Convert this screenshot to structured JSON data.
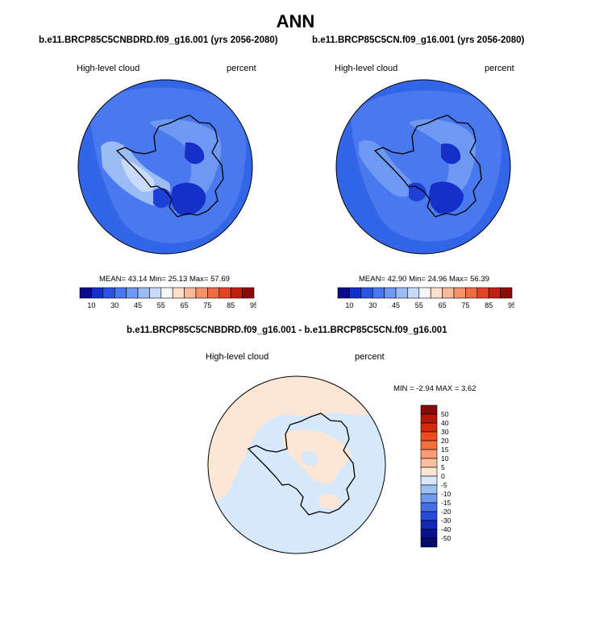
{
  "page_title": "ANN",
  "panels": [
    {
      "case": "b.e11.BRCP85C5CNBDRD.f09_g16.001 (yrs 2056-2080)",
      "variable": "High-level cloud",
      "units": "percent",
      "stats": {
        "mean_label": "MEAN=",
        "mean": "43.14",
        "min_label": "Min=",
        "min": "25.13",
        "max_label": "Max=",
        "max": "57.69"
      }
    },
    {
      "case": "b.e11.BRCP85C5CN.f09_g16.001 (yrs 2056-2080)",
      "variable": "High-level cloud",
      "units": "percent",
      "stats": {
        "mean_label": "MEAN=",
        "mean": "42.90",
        "min_label": "Min=",
        "min": "24.96",
        "max_label": "Max=",
        "max": "56.39"
      }
    }
  ],
  "colorbar_horizontal": {
    "labels": [
      "10",
      "30",
      "45",
      "55",
      "65",
      "75",
      "85",
      "95"
    ],
    "colors": [
      "#0a0a8c",
      "#1530c8",
      "#2a55e0",
      "#4a78ee",
      "#6e98f2",
      "#9cbcf6",
      "#c8dcfa",
      "#f7f7f7",
      "#fde0cc",
      "#f7b999",
      "#f3926b",
      "#ee6b44",
      "#e14426",
      "#c02010",
      "#8b0a0a"
    ]
  },
  "diff_panel": {
    "title": "b.e11.BRCP85C5CNBDRD.f09_g16.001 - b.e11.BRCP85C5CN.f09_g16.001",
    "variable": "High-level cloud",
    "units": "percent",
    "stats": {
      "min_label": "MIN =",
      "min": "-2.94",
      "max_label": "MAX =",
      "max": "3.62"
    }
  },
  "colorbar_vertical": {
    "labels": [
      "50",
      "40",
      "30",
      "20",
      "15",
      "10",
      "5",
      "0",
      "-5",
      "-10",
      "-15",
      "-20",
      "-30",
      "-40",
      "-50"
    ],
    "colors": [
      "#8b0a0a",
      "#b51608",
      "#d42a0c",
      "#ef4b1c",
      "#f56f3d",
      "#f79b74",
      "#f9bf9e",
      "#fde6d5",
      "#d6e8fb",
      "#9dc0f5",
      "#6f98ee",
      "#4670e6",
      "#2549d8",
      "#1228b8",
      "#06128e",
      "#020a6a"
    ]
  },
  "colors": {
    "map_dark": "#1530c8",
    "map_main": "#3366e6",
    "map_light": "#6e98f2",
    "map_lighter": "#9cbcf6",
    "map_pale": "#c8dcfa",
    "diff_pos": "#fde6d5",
    "diff_neg": "#d6e8fb"
  }
}
